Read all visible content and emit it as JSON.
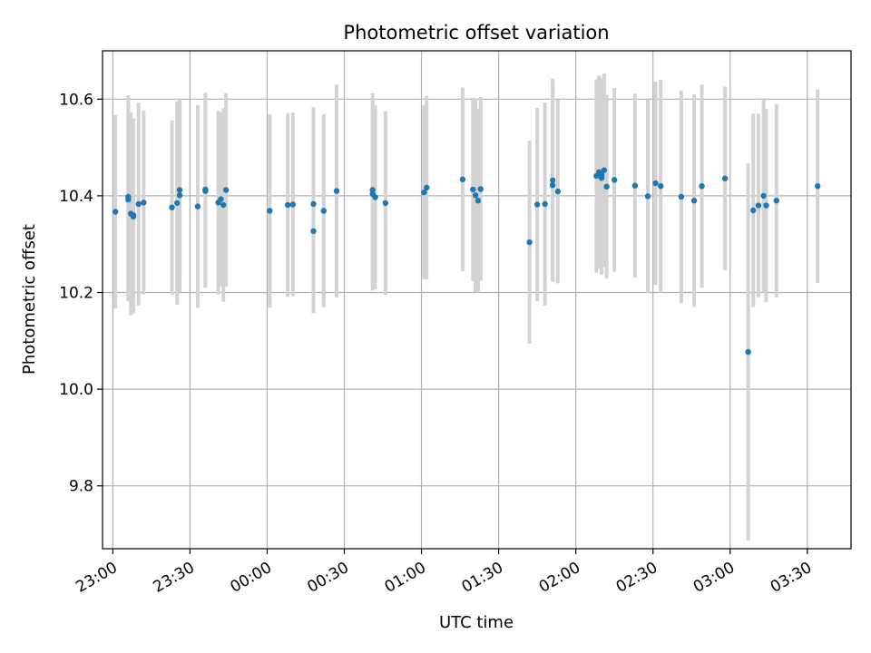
{
  "chart_data": {
    "type": "scatter",
    "title": "Photometric offset variation",
    "xlabel": "UTC time",
    "ylabel": "Photometric offset",
    "x_ticks": [
      "23:00",
      "23:30",
      "00:00",
      "00:30",
      "01:00",
      "01:30",
      "02:00",
      "02:30",
      "03:00",
      "03:30"
    ],
    "y_ticks": [
      "9.8",
      "10.0",
      "10.2",
      "10.4",
      "10.6"
    ],
    "xlim": [
      "22:56",
      "03:47"
    ],
    "ylim": [
      9.67,
      10.7
    ],
    "grid": true,
    "colors": {
      "point": "#1f77b4",
      "errorbar": "#d3d3d3",
      "grid": "#b0b0b0"
    },
    "series": [
      {
        "x": [
          "23:06",
          "23:06",
          "23:07",
          "23:08",
          "23:08",
          "23:10",
          "23:12",
          "23:23",
          "23:25",
          "23:26",
          "23:26",
          "23:33",
          "23:36",
          "23:36",
          "23:41",
          "23:42",
          "23:43",
          "23:44",
          "23:01",
          "00:01",
          "00:08",
          "00:10",
          "00:18",
          "00:18",
          "00:22",
          "00:27",
          "00:41",
          "00:41",
          "00:42",
          "00:46",
          "01:01",
          "01:02",
          "01:16",
          "01:20",
          "01:21",
          "01:22",
          "01:23",
          "01:42",
          "01:45",
          "01:48",
          "01:51",
          "01:51",
          "01:53",
          "02:08",
          "02:09",
          "02:10",
          "02:10",
          "02:11",
          "02:12",
          "02:15",
          "02:23",
          "02:28",
          "02:31",
          "02:33",
          "02:41",
          "02:46",
          "02:49",
          "02:58",
          "03:07",
          "03:09",
          "03:11",
          "03:13",
          "03:14",
          "03:18",
          "03:34"
        ],
        "y": [
          10.398,
          10.392,
          10.363,
          10.36,
          10.357,
          10.383,
          10.386,
          10.376,
          10.385,
          10.412,
          10.401,
          10.378,
          10.41,
          10.413,
          10.386,
          10.393,
          10.381,
          10.412,
          10.367,
          10.369,
          10.381,
          10.382,
          10.383,
          10.327,
          10.369,
          10.41,
          10.412,
          10.404,
          10.397,
          10.385,
          10.407,
          10.417,
          10.434,
          10.413,
          10.401,
          10.39,
          10.414,
          10.304,
          10.382,
          10.383,
          10.422,
          10.432,
          10.409,
          10.441,
          10.449,
          10.443,
          10.437,
          10.453,
          10.419,
          10.433,
          10.421,
          10.399,
          10.426,
          10.42,
          10.398,
          10.39,
          10.42,
          10.436,
          10.077,
          10.37,
          10.38,
          10.4,
          10.38,
          10.39,
          10.42
        ],
        "yerr": [
          0.21,
          0.21,
          0.21,
          0.2,
          0.2,
          0.21,
          0.19,
          0.18,
          0.21,
          0.19,
          0.2,
          0.21,
          0.2,
          0.2,
          0.19,
          0.18,
          0.2,
          0.2,
          0.2,
          0.2,
          0.19,
          0.19,
          0.2,
          0.17,
          0.2,
          0.22,
          0.2,
          0.2,
          0.19,
          0.19,
          0.18,
          0.19,
          0.19,
          0.19,
          0.2,
          0.19,
          0.19,
          0.21,
          0.2,
          0.21,
          0.2,
          0.21,
          0.19,
          0.2,
          0.2,
          0.2,
          0.2,
          0.2,
          0.19,
          0.19,
          0.19,
          0.2,
          0.21,
          0.22,
          0.22,
          0.22,
          0.21,
          0.19,
          0.39,
          0.2,
          0.19,
          0.2,
          0.2,
          0.2,
          0.2
        ]
      }
    ]
  }
}
